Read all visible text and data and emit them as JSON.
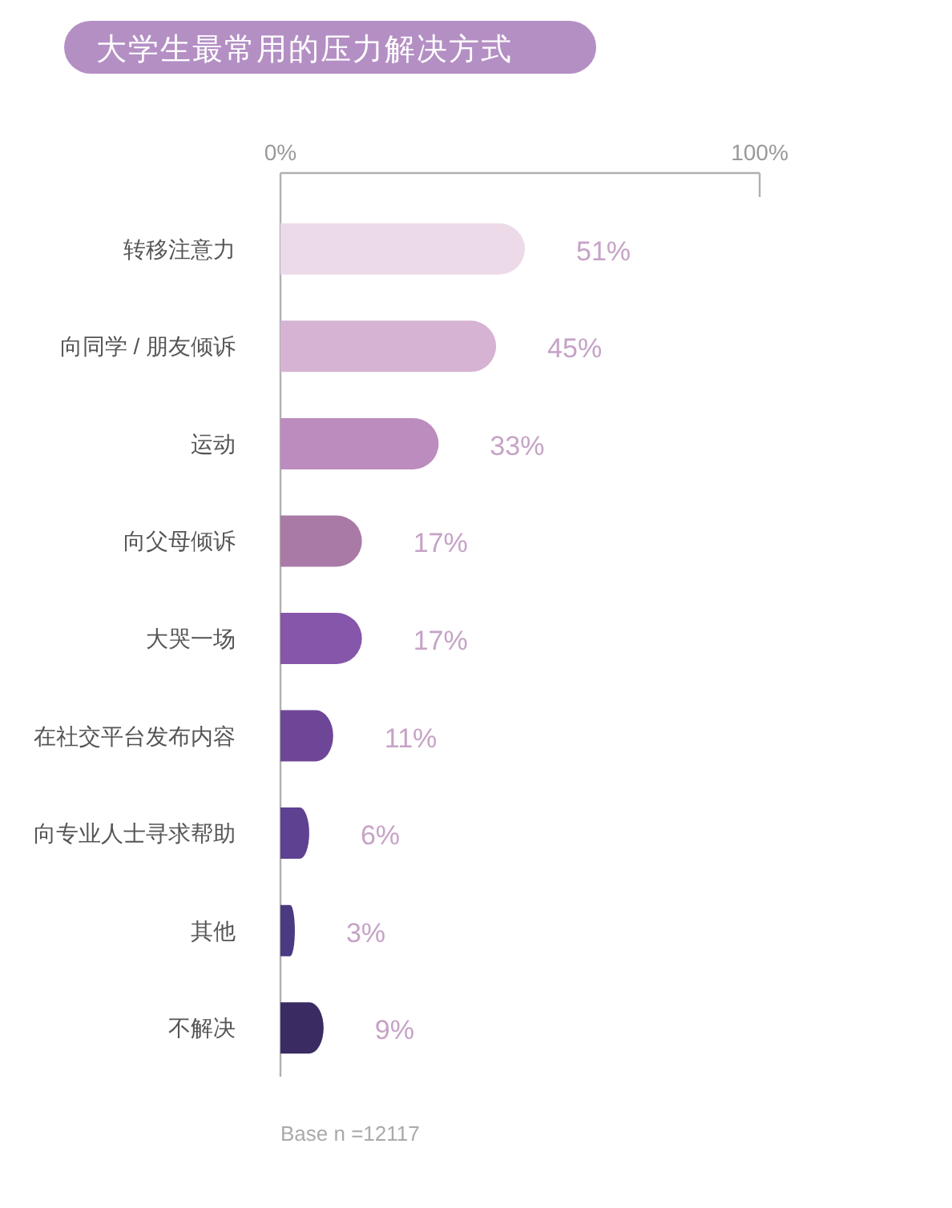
{
  "chart_data": {
    "type": "bar",
    "orientation": "horizontal",
    "title": "大学生最常用的压力解决方式",
    "categories": [
      "转移注意力",
      "向同学 / 朋友倾诉",
      "运动",
      "向父母倾诉",
      "大哭一场",
      "在社交平台发布内容",
      "向专业人士寻求帮助",
      "其他",
      "不解决"
    ],
    "values": [
      51,
      45,
      33,
      17,
      17,
      11,
      6,
      3,
      9
    ],
    "value_labels": [
      "51%",
      "45%",
      "33%",
      "17%",
      "17%",
      "11%",
      "6%",
      "3%",
      "9%"
    ],
    "colors": [
      "#ecdae9",
      "#d6b3d3",
      "#bb8cbd",
      "#a97aa6",
      "#8556a9",
      "#6e4697",
      "#5e4190",
      "#4b3a82",
      "#3a2b62"
    ],
    "xlim": [
      0,
      100
    ],
    "xticks": [
      {
        "value": 0,
        "label": "0%"
      },
      {
        "value": 100,
        "label": "100%"
      }
    ],
    "annotations": [
      "Base n =12117"
    ]
  }
}
